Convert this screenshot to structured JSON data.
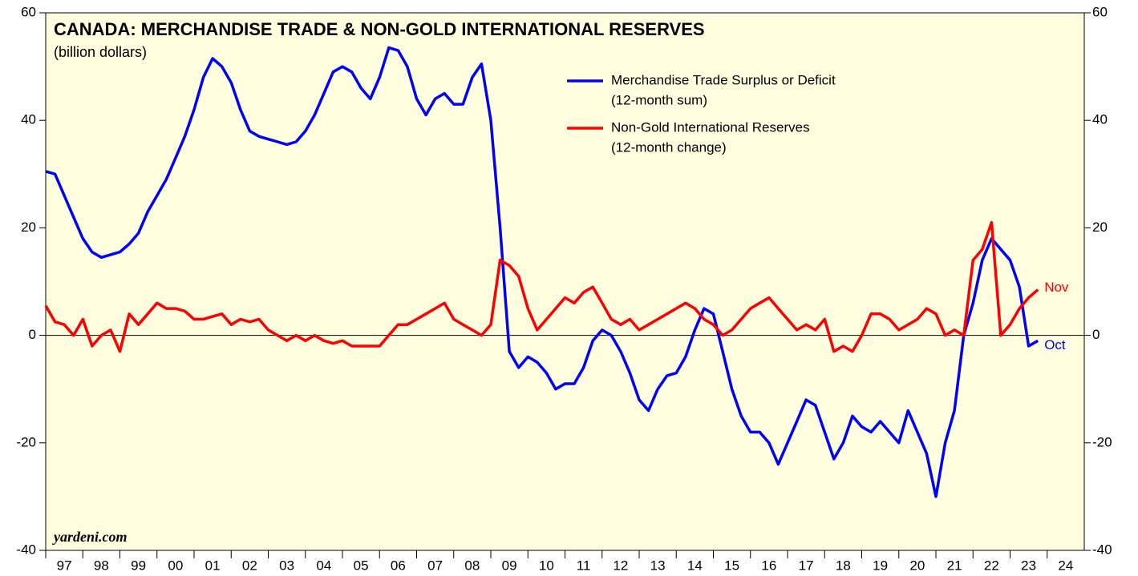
{
  "chart_data": {
    "type": "line",
    "title": "CANADA: MERCHANDISE TRADE & NON-GOLD INTERNATIONAL RESERVES",
    "subtitle": "(billion dollars)",
    "source": "yardeni.com",
    "x": [
      1997,
      1997.25,
      1997.5,
      1997.75,
      1998,
      1998.25,
      1998.5,
      1998.75,
      1999,
      1999.25,
      1999.5,
      1999.75,
      2000,
      2000.25,
      2000.5,
      2000.75,
      2001,
      2001.25,
      2001.5,
      2001.75,
      2002,
      2002.25,
      2002.5,
      2002.75,
      2003,
      2003.25,
      2003.5,
      2003.75,
      2004,
      2004.25,
      2004.5,
      2004.75,
      2005,
      2005.25,
      2005.5,
      2005.75,
      2006,
      2006.25,
      2006.5,
      2006.75,
      2007,
      2007.25,
      2007.5,
      2007.75,
      2008,
      2008.25,
      2008.5,
      2008.75,
      2009,
      2009.25,
      2009.5,
      2009.75,
      2010,
      2010.25,
      2010.5,
      2010.75,
      2011,
      2011.25,
      2011.5,
      2011.75,
      2012,
      2012.25,
      2012.5,
      2012.75,
      2013,
      2013.25,
      2013.5,
      2013.75,
      2014,
      2014.25,
      2014.5,
      2014.75,
      2015,
      2015.25,
      2015.5,
      2015.75,
      2016,
      2016.25,
      2016.5,
      2016.75,
      2017,
      2017.25,
      2017.5,
      2017.75,
      2018,
      2018.25,
      2018.5,
      2018.75,
      2019,
      2019.25,
      2019.5,
      2019.75,
      2020,
      2020.25,
      2020.5,
      2020.75,
      2021,
      2021.25,
      2021.5,
      2021.75,
      2022,
      2022.25,
      2022.5,
      2022.75,
      2023,
      2023.25,
      2023.5,
      2023.75
    ],
    "series": [
      {
        "name": "Merchandise Trade Surplus or Deficit",
        "name_note": "(12-month sum)",
        "color": "#0000ff",
        "end_label": "Oct",
        "values": [
          30.5,
          30,
          26,
          22,
          18,
          15.5,
          14.5,
          15,
          15.5,
          17,
          19,
          23,
          26,
          29,
          33,
          37,
          42,
          48,
          51.5,
          50,
          47,
          42,
          38,
          37,
          36.5,
          36,
          35.5,
          36,
          38,
          41,
          45,
          49,
          50,
          49,
          46,
          44,
          48,
          53.5,
          53,
          50,
          44,
          41,
          44,
          45,
          43,
          43,
          48,
          50.5,
          40,
          20,
          -3,
          -6,
          -4,
          -5,
          -7,
          -10,
          -9,
          -9,
          -6,
          -1,
          1,
          0,
          -3,
          -7,
          -12,
          -14,
          -10,
          -7.5,
          -7,
          -4,
          1,
          5,
          4,
          -3,
          -10,
          -15,
          -18,
          -18,
          -20,
          -24,
          -20,
          -16,
          -12,
          -13,
          -18,
          -23,
          -20,
          -15,
          -17,
          -18,
          -16,
          -18,
          -20,
          -14,
          -18,
          -22,
          -30,
          -20,
          -14,
          0,
          6,
          14,
          18,
          16,
          14,
          9,
          -2,
          -1
        ]
      },
      {
        "name": "Non-Gold International Reserves",
        "name_note": "(12-month change)",
        "color": "#ff0000",
        "end_label": "Nov",
        "values": [
          5.5,
          2.5,
          2,
          0,
          3,
          -2,
          0,
          1,
          -3,
          4,
          2,
          4,
          6,
          5,
          5,
          4.5,
          3,
          3,
          3.5,
          4,
          2,
          3,
          2.5,
          3,
          1,
          0,
          -1,
          0,
          -1,
          0,
          -1,
          -1.5,
          -1,
          -2,
          -2,
          -2,
          -2,
          0,
          2,
          2,
          3,
          4,
          5,
          6,
          3,
          2,
          1,
          0,
          2,
          14,
          13,
          11,
          5,
          1,
          3,
          5,
          7,
          6,
          8,
          9,
          6,
          3,
          2,
          3,
          1,
          2,
          3,
          4,
          5,
          6,
          5,
          3,
          2,
          0,
          1,
          3,
          5,
          6,
          7,
          5,
          3,
          1,
          2,
          1,
          3,
          -3,
          -2,
          -3,
          0,
          4,
          4,
          3,
          1,
          2,
          3,
          5,
          4,
          0,
          1,
          0,
          14,
          16,
          21,
          0,
          2,
          5,
          7,
          8.5
        ]
      }
    ],
    "xlim": [
      1997,
      2025
    ],
    "xticks": [
      {
        "value": 1997.5,
        "label": "97"
      },
      {
        "value": 1998.5,
        "label": "98"
      },
      {
        "value": 1999.5,
        "label": "99"
      },
      {
        "value": 2000.5,
        "label": "00"
      },
      {
        "value": 2001.5,
        "label": "01"
      },
      {
        "value": 2002.5,
        "label": "02"
      },
      {
        "value": 2003.5,
        "label": "03"
      },
      {
        "value": 2004.5,
        "label": "04"
      },
      {
        "value": 2005.5,
        "label": "05"
      },
      {
        "value": 2006.5,
        "label": "06"
      },
      {
        "value": 2007.5,
        "label": "07"
      },
      {
        "value": 2008.5,
        "label": "08"
      },
      {
        "value": 2009.5,
        "label": "09"
      },
      {
        "value": 2010.5,
        "label": "10"
      },
      {
        "value": 2011.5,
        "label": "11"
      },
      {
        "value": 2012.5,
        "label": "12"
      },
      {
        "value": 2013.5,
        "label": "13"
      },
      {
        "value": 2014.5,
        "label": "14"
      },
      {
        "value": 2015.5,
        "label": "15"
      },
      {
        "value": 2016.5,
        "label": "16"
      },
      {
        "value": 2017.5,
        "label": "17"
      },
      {
        "value": 2018.5,
        "label": "18"
      },
      {
        "value": 2019.5,
        "label": "19"
      },
      {
        "value": 2020.5,
        "label": "20"
      },
      {
        "value": 2021.5,
        "label": "21"
      },
      {
        "value": 2022.5,
        "label": "22"
      },
      {
        "value": 2023.5,
        "label": "23"
      },
      {
        "value": 2024.5,
        "label": "24"
      }
    ],
    "ylim": [
      -40,
      60
    ],
    "yticks": [
      -40,
      -20,
      0,
      20,
      40,
      60
    ],
    "zero_line": true
  }
}
